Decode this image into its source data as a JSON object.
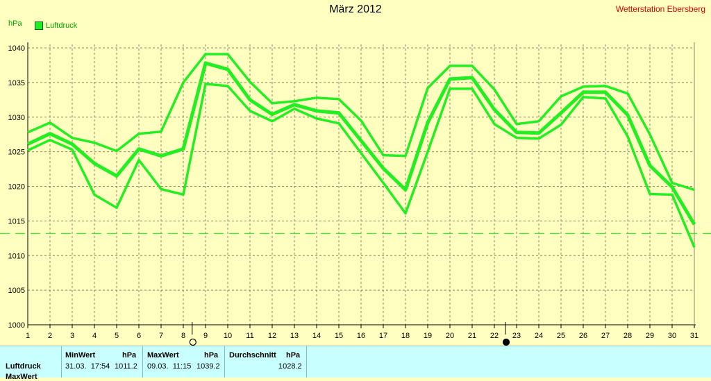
{
  "title": "März 2012",
  "station": "Wetterstation Ebersberg",
  "unit": "hPa",
  "legend": "Luftdruck",
  "chart_data": {
    "type": "line",
    "x": [
      1,
      2,
      3,
      4,
      5,
      6,
      7,
      8,
      9,
      10,
      11,
      12,
      13,
      14,
      15,
      16,
      17,
      18,
      19,
      20,
      21,
      22,
      23,
      24,
      25,
      26,
      27,
      28,
      29,
      30,
      31
    ],
    "series": [
      {
        "role": "max",
        "values": [
          1027.8,
          1029.2,
          1027.0,
          1026.3,
          1025.1,
          1027.6,
          1027.9,
          1035.0,
          1039.1,
          1039.1,
          1035.1,
          1032.0,
          1032.3,
          1032.8,
          1032.6,
          1029.5,
          1024.5,
          1024.4,
          1034.2,
          1037.4,
          1037.4,
          1034.0,
          1029.0,
          1029.4,
          1033.0,
          1034.4,
          1034.5,
          1033.4,
          1027.5,
          1020.5,
          1019.5
        ]
      },
      {
        "role": "avg",
        "values": [
          1026.1,
          1027.6,
          1026.1,
          1023.3,
          1021.5,
          1025.4,
          1024.4,
          1025.4,
          1037.8,
          1036.9,
          1032.5,
          1030.4,
          1031.8,
          1030.9,
          1030.6,
          1026.6,
          1022.6,
          1019.5,
          1029.2,
          1035.5,
          1035.7,
          1031.1,
          1027.8,
          1027.7,
          1030.6,
          1033.6,
          1033.6,
          1030.3,
          1023.0,
          1019.9,
          1014.5
        ]
      },
      {
        "role": "min",
        "values": [
          1025.2,
          1026.7,
          1025.3,
          1018.8,
          1016.9,
          1023.8,
          1019.6,
          1018.8,
          1034.8,
          1034.5,
          1030.9,
          1029.4,
          1031.2,
          1029.8,
          1029.1,
          1024.8,
          1020.5,
          1016.1,
          1025.0,
          1034.1,
          1034.1,
          1029.0,
          1027.0,
          1026.9,
          1028.9,
          1032.9,
          1032.7,
          1027.2,
          1018.9,
          1018.8,
          1011.2
        ]
      }
    ],
    "reference_line": 1013.2,
    "ylim": [
      1000,
      1040
    ],
    "yticks": [
      1000,
      1005,
      1010,
      1015,
      1020,
      1025,
      1030,
      1035,
      1040
    ],
    "moon": [
      {
        "day": 8.4,
        "phase": "full"
      },
      {
        "day": 22.5,
        "phase": "new"
      }
    ],
    "grid": true,
    "legend_position": "top-left"
  },
  "stats": {
    "row_label": "Luftdruck",
    "row_label_2": "MaxWert",
    "min_header": "MinWert",
    "min_unit": "hPa",
    "min_time": "31.03.  17:54",
    "min_value": "1011.2",
    "max_header": "MaxWert",
    "max_unit": "hPa",
    "max_time": "09.03.  11:15",
    "max_value": "1039.2",
    "avg_header": "Durchschnitt",
    "avg_unit": "hPa",
    "avg_value": "1028.2"
  },
  "colors": {
    "line": "#22ee22",
    "background": "#ffffc0",
    "grid": "#888866",
    "stats_bg": "#c8ffff"
  }
}
